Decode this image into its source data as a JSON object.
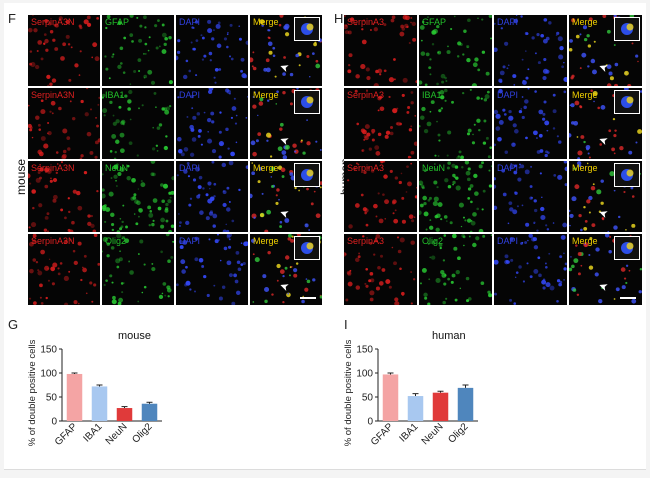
{
  "panels": {
    "F": {
      "letter": "F",
      "side_label": "mouse",
      "rows": [
        {
          "labels": [
            "SerpinA3N",
            "GFAP",
            "DAPI",
            "Merge"
          ]
        },
        {
          "labels": [
            "SerpinA3N",
            "IBA1",
            "DAPI",
            "Merge"
          ]
        },
        {
          "labels": [
            "SerpinA3N",
            "NeuN",
            "DAPI",
            "Merge"
          ]
        },
        {
          "labels": [
            "SerpinA3N",
            "Olig2",
            "DAPI",
            "Merge"
          ]
        }
      ]
    },
    "H": {
      "letter": "H",
      "side_label": "human",
      "rows": [
        {
          "labels": [
            "SerpinA3",
            "GFAP",
            "DAPI",
            "Merge"
          ]
        },
        {
          "labels": [
            "SerpinA3",
            "IBA1",
            "DAPI",
            "Merge"
          ]
        },
        {
          "labels": [
            "SerpinA3",
            "NeuN",
            "DAPI",
            "Merge"
          ]
        },
        {
          "labels": [
            "SerpinA3",
            "Olig2",
            "DAPI",
            "Merge"
          ]
        }
      ]
    },
    "G": {
      "letter": "G"
    },
    "I": {
      "letter": "I"
    }
  },
  "channel_colors": {
    "red": "#e02020",
    "green": "#22c02a",
    "blue": "#3040e0",
    "merge_label": "#f0d000",
    "dapi_label": "#3040e0"
  },
  "chart_data": [
    {
      "type": "bar",
      "title": "mouse",
      "ylabel": "% of double positive cells",
      "xlabel": "",
      "categories": [
        "GFAP",
        "IBA1",
        "NeuN",
        "Olig2"
      ],
      "values": [
        98,
        72,
        27,
        36
      ],
      "errors": [
        2,
        3,
        3,
        3
      ],
      "bar_colors": [
        "#f4a4a4",
        "#a8c8f0",
        "#e03a3a",
        "#4f86bd"
      ],
      "ylim": [
        0,
        150
      ],
      "yticks": [
        0,
        50,
        100,
        150
      ],
      "grid": false,
      "legend": "none"
    },
    {
      "type": "bar",
      "title": "human",
      "ylabel": "% of double positive cells",
      "xlabel": "",
      "categories": [
        "GFAP",
        "IBA1",
        "NeuN",
        "Olig2"
      ],
      "values": [
        97,
        52,
        59,
        69
      ],
      "errors": [
        3,
        5,
        3,
        6
      ],
      "bar_colors": [
        "#f4a4a4",
        "#a8c8f0",
        "#e03a3a",
        "#4f86bd"
      ],
      "ylim": [
        0,
        150
      ],
      "yticks": [
        0,
        50,
        100,
        150
      ],
      "grid": false,
      "legend": "none"
    }
  ]
}
